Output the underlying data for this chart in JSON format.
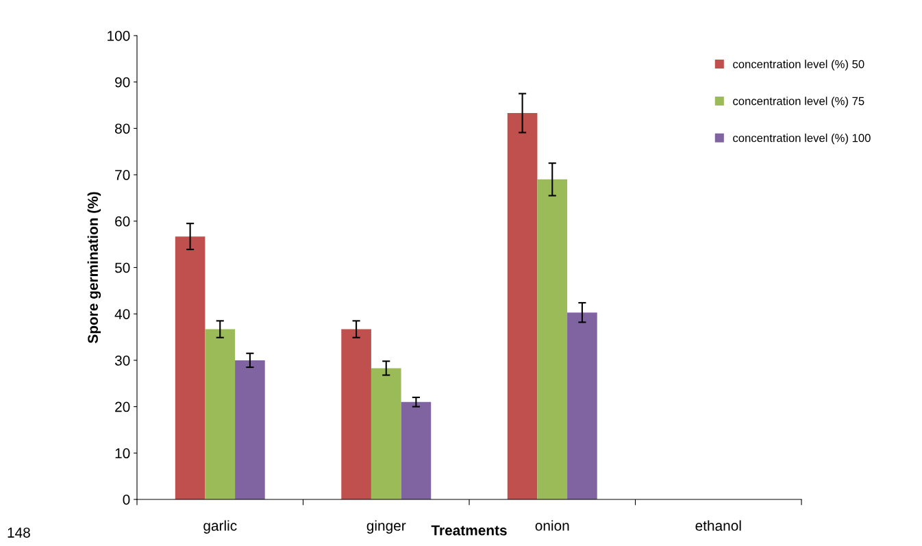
{
  "chart_data": {
    "type": "bar",
    "categories": [
      "garlic",
      "ginger",
      "onion",
      "ethanol"
    ],
    "series": [
      {
        "name": "concentration level (%) 50",
        "color": "#c0504d",
        "values": [
          56.7,
          36.7,
          83.3,
          0
        ],
        "errors": [
          2.8,
          1.8,
          4.2,
          null
        ]
      },
      {
        "name": "concentration level (%) 75",
        "color": "#9bbb59",
        "values": [
          36.7,
          28.3,
          69.0,
          0
        ],
        "errors": [
          1.8,
          1.5,
          3.5,
          null
        ]
      },
      {
        "name": "concentration level (%) 100",
        "color": "#8064a2",
        "values": [
          30.0,
          21.0,
          40.3,
          0
        ],
        "errors": [
          1.5,
          1.0,
          2.1,
          null
        ]
      }
    ],
    "ylabel": "Spore germination (%)",
    "xlabel": "Treatments",
    "ylim": [
      0,
      100
    ],
    "yticks": [
      0,
      10,
      20,
      30,
      40,
      50,
      60,
      70,
      80,
      90,
      100
    ],
    "grid": false,
    "legend": "top right",
    "annotations": [
      "148"
    ]
  }
}
